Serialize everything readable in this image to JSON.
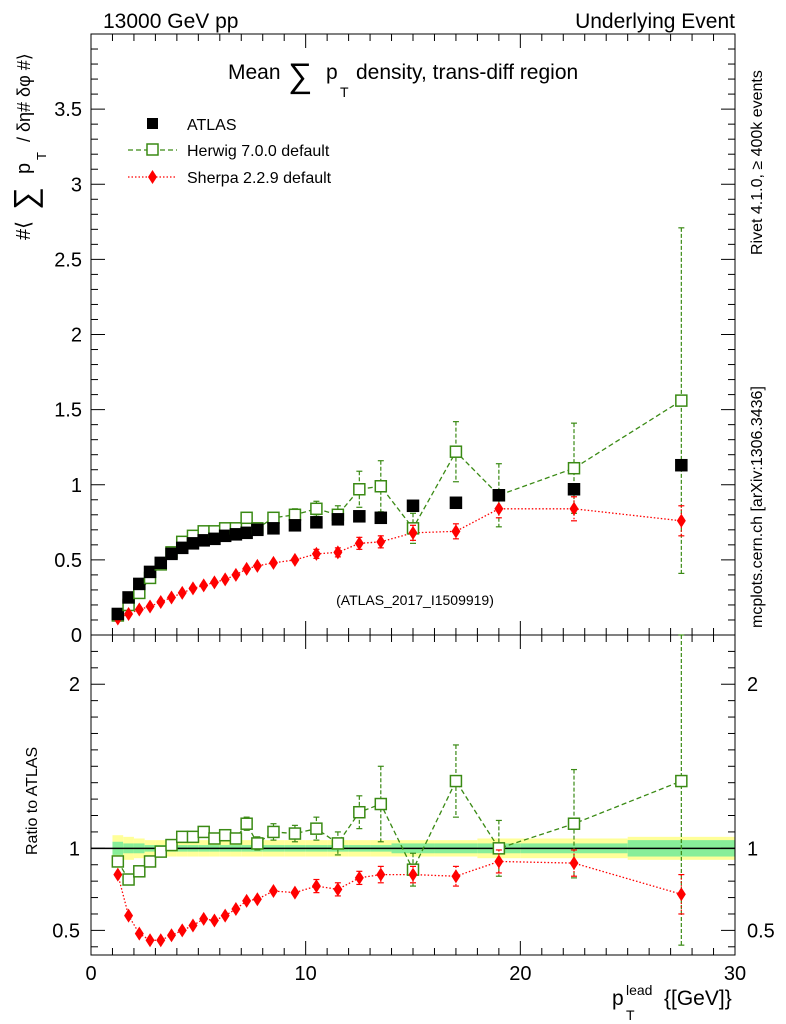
{
  "header": {
    "left": "13000 GeV pp",
    "right": "Underlying Event"
  },
  "side_labels": {
    "rivet": "Rivet 4.1.0, ≥ 400k events",
    "mcplots": "mcplots.cern.ch [arXiv:1306.3436]"
  },
  "colors": {
    "atlas": "#000000",
    "herwig": "#3a8a14",
    "sherpa": "#ff0000",
    "band_outer": "#ffff99",
    "band_inner": "#88ee99"
  },
  "chart_data": {
    "type": "scatter",
    "title_parts": [
      "Mean",
      "∑",
      "p",
      "T",
      "density, trans-diff region"
    ],
    "watermark": "(ATLAS_2017_I1509919)",
    "ylabel_main": [
      "#⟨",
      "∑",
      "p",
      "T",
      "/ δη# δφ #⟩"
    ],
    "ylabel_ratio": "Ratio to ATLAS",
    "xlabel": [
      "p",
      "T",
      "lead",
      "{[GeV]}"
    ],
    "xlim": [
      0,
      30
    ],
    "ylim_main": [
      0,
      4.0
    ],
    "ylim_ratio": [
      0.35,
      2.3
    ],
    "x_ticks": [
      "0",
      "10",
      "20",
      "30"
    ],
    "y_ticks_main": [
      "0",
      "0.5",
      "1",
      "1.5",
      "2",
      "2.5",
      "3",
      "3.5"
    ],
    "y_ticks_ratio": [
      "0.5",
      "1",
      "2"
    ],
    "legend": [
      "ATLAS",
      "Herwig 7.0.0 default",
      "Sherpa 2.2.9 default"
    ],
    "legend_position": "top-left",
    "x": [
      1.25,
      1.75,
      2.25,
      2.75,
      3.25,
      3.75,
      4.25,
      4.75,
      5.25,
      5.75,
      6.25,
      6.75,
      7.25,
      7.75,
      8.5,
      9.5,
      10.5,
      11.5,
      12.5,
      13.5,
      15,
      17,
      19,
      22.5,
      27.5
    ],
    "series": [
      {
        "name": "ATLAS",
        "values": [
          0.14,
          0.25,
          0.34,
          0.42,
          0.48,
          0.54,
          0.58,
          0.61,
          0.63,
          0.64,
          0.66,
          0.67,
          0.68,
          0.7,
          0.71,
          0.73,
          0.75,
          0.77,
          0.79,
          0.78,
          0.86,
          0.88,
          0.93,
          0.97,
          1.13
        ],
        "errors": [
          0,
          0,
          0,
          0,
          0,
          0,
          0,
          0,
          0,
          0,
          0,
          0,
          0,
          0,
          0,
          0,
          0,
          0,
          0,
          0,
          0,
          0,
          0,
          0,
          0
        ],
        "ratio": [
          1,
          1,
          1,
          1,
          1,
          1,
          1,
          1,
          1,
          1,
          1,
          1,
          1,
          1,
          1,
          1,
          1,
          1,
          1,
          1,
          1,
          1,
          1,
          1,
          1
        ],
        "ratio_errors": [
          0,
          0,
          0,
          0,
          0,
          0,
          0,
          0,
          0,
          0,
          0,
          0,
          0,
          0,
          0,
          0,
          0,
          0,
          0,
          0,
          0,
          0,
          0,
          0,
          0
        ]
      },
      {
        "name": "Herwig 7.0.0 default",
        "values": [
          0.13,
          0.2,
          0.28,
          0.38,
          0.47,
          0.55,
          0.62,
          0.66,
          0.69,
          0.69,
          0.71,
          0.71,
          0.78,
          0.71,
          0.78,
          0.8,
          0.84,
          0.8,
          0.97,
          0.99,
          0.71,
          1.22,
          0.93,
          1.11,
          1.56
        ],
        "errors": [
          0.01,
          0.01,
          0.01,
          0.01,
          0.01,
          0.01,
          0.01,
          0.01,
          0.01,
          0.01,
          0.02,
          0.02,
          0.03,
          0.03,
          0.03,
          0.04,
          0.05,
          0.06,
          0.12,
          0.17,
          0.1,
          0.2,
          0.21,
          0.3,
          1.15
        ],
        "ratio": [
          0.92,
          0.81,
          0.86,
          0.92,
          0.98,
          1.02,
          1.07,
          1.07,
          1.1,
          1.06,
          1.08,
          1.06,
          1.15,
          1.03,
          1.1,
          1.09,
          1.12,
          1.03,
          1.22,
          1.27,
          0.87,
          1.41,
          1.0,
          1.15,
          1.41
        ]
      },
      {
        "name": "Sherpa 2.2.9 default",
        "values": [
          0.11,
          0.14,
          0.17,
          0.19,
          0.22,
          0.25,
          0.28,
          0.31,
          0.33,
          0.35,
          0.37,
          0.4,
          0.44,
          0.46,
          0.48,
          0.5,
          0.54,
          0.55,
          0.61,
          0.62,
          0.68,
          0.69,
          0.84,
          0.84,
          0.76
        ],
        "errors": [
          0.01,
          0.01,
          0.01,
          0.01,
          0.01,
          0.01,
          0.01,
          0.01,
          0.01,
          0.01,
          0.01,
          0.01,
          0.02,
          0.02,
          0.02,
          0.02,
          0.03,
          0.03,
          0.04,
          0.04,
          0.05,
          0.05,
          0.06,
          0.08,
          0.1
        ],
        "ratio": [
          0.84,
          0.59,
          0.48,
          0.44,
          0.44,
          0.47,
          0.5,
          0.53,
          0.57,
          0.56,
          0.59,
          0.63,
          0.68,
          0.69,
          0.74,
          0.73,
          0.77,
          0.75,
          0.82,
          0.84,
          0.84,
          0.83,
          0.92,
          0.91,
          0.72
        ]
      }
    ],
    "ratio_errors_herwig": [
      0.02,
      0.02,
      0.02,
      0.02,
      0.02,
      0.02,
      0.02,
      0.02,
      0.02,
      0.02,
      0.03,
      0.03,
      0.04,
      0.04,
      0.05,
      0.05,
      0.07,
      0.07,
      0.1,
      0.23,
      0.1,
      0.22,
      0.17,
      0.33,
      1.0
    ],
    "ratio_errors_sherpa": [
      0.02,
      0.02,
      0.01,
      0.01,
      0.01,
      0.01,
      0.01,
      0.01,
      0.01,
      0.01,
      0.01,
      0.02,
      0.02,
      0.02,
      0.02,
      0.02,
      0.04,
      0.04,
      0.04,
      0.05,
      0.05,
      0.06,
      0.07,
      0.08,
      0.12
    ],
    "band_edges": [
      1,
      1.5,
      2,
      2.5,
      3,
      3.5,
      4,
      4.5,
      5,
      5.5,
      6,
      6.5,
      7,
      7.5,
      8,
      9,
      10,
      11,
      12,
      13,
      14,
      16,
      18,
      20,
      25,
      30
    ],
    "band_outer": [
      0.08,
      0.07,
      0.06,
      0.05,
      0.05,
      0.05,
      0.05,
      0.05,
      0.05,
      0.05,
      0.05,
      0.05,
      0.05,
      0.05,
      0.05,
      0.05,
      0.05,
      0.05,
      0.05,
      0.05,
      0.05,
      0.05,
      0.06,
      0.06,
      0.07
    ],
    "band_inner": [
      0.04,
      0.03,
      0.03,
      0.02,
      0.02,
      0.02,
      0.02,
      0.02,
      0.02,
      0.02,
      0.02,
      0.02,
      0.02,
      0.02,
      0.02,
      0.02,
      0.02,
      0.02,
      0.02,
      0.02,
      0.03,
      0.03,
      0.03,
      0.03,
      0.05
    ]
  }
}
